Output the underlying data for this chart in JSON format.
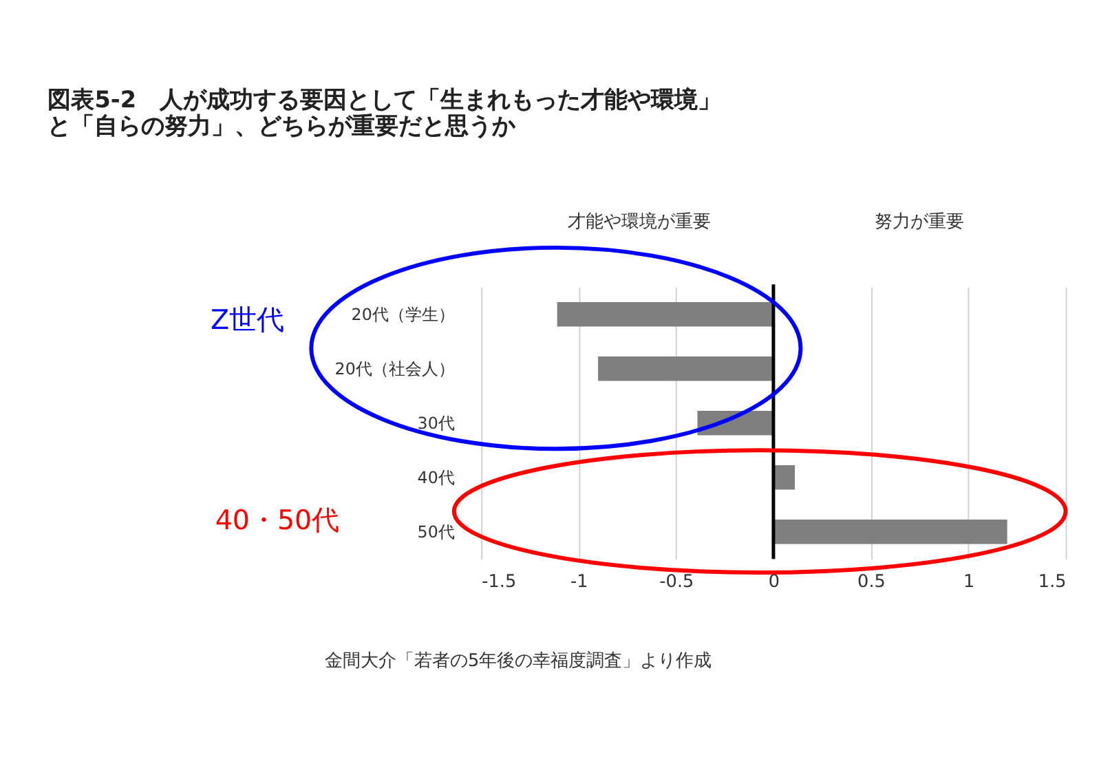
{
  "chart_data": {
    "type": "bar",
    "orientation": "horizontal",
    "title": [
      "図表5-2　人が成功する要因として「生まれもった才能や環境」",
      "と「自らの努力」、どちらが重要だと思うか"
    ],
    "categories": [
      "20代（学生）",
      "20代（社会人）",
      "30代",
      "40代",
      "50代"
    ],
    "values": [
      -1.11,
      -0.9,
      -0.39,
      0.11,
      1.2
    ],
    "color": "#7f7f7f",
    "xlim": [
      -1.5,
      1.5
    ],
    "xticks": [
      -1.5,
      -1,
      -0.5,
      0,
      0.5,
      1,
      1.5
    ],
    "grid": "x",
    "ref_lines": [
      {
        "axis": "x",
        "value": 0,
        "color": "#000000"
      }
    ],
    "annotations": [
      "才能や環境が重要",
      "努力が重要",
      "Z世代",
      "40・50代",
      "金間大介「若者の5年後の幸福度調査」より作成"
    ]
  }
}
